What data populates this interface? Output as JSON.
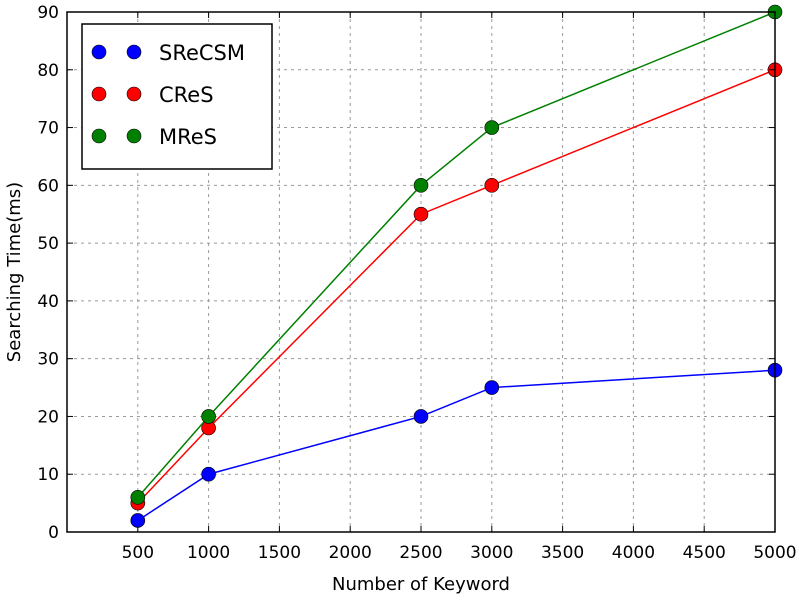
{
  "chart_data": {
    "type": "line",
    "title": "",
    "xlabel": "Number of Keyword",
    "ylabel": "Searching Time(ms)",
    "xlim": [
      0,
      5000
    ],
    "ylim": [
      0,
      90
    ],
    "xticks": [
      500,
      1000,
      1500,
      2000,
      2500,
      3000,
      3500,
      4000,
      4500,
      5000
    ],
    "yticks": [
      0,
      10,
      20,
      30,
      40,
      50,
      60,
      70,
      80,
      90
    ],
    "grid": true,
    "legend_position": "top-left",
    "x": [
      500,
      1000,
      2500,
      3000,
      5000
    ],
    "series": [
      {
        "name": "SReCSM",
        "color": "#0000ff",
        "values": [
          2,
          10,
          20,
          25,
          28
        ]
      },
      {
        "name": "CReS",
        "color": "#ff0000",
        "values": [
          5,
          18,
          55,
          60,
          80
        ]
      },
      {
        "name": "MReS",
        "color": "#008000",
        "values": [
          6,
          20,
          60,
          70,
          90
        ]
      }
    ]
  }
}
